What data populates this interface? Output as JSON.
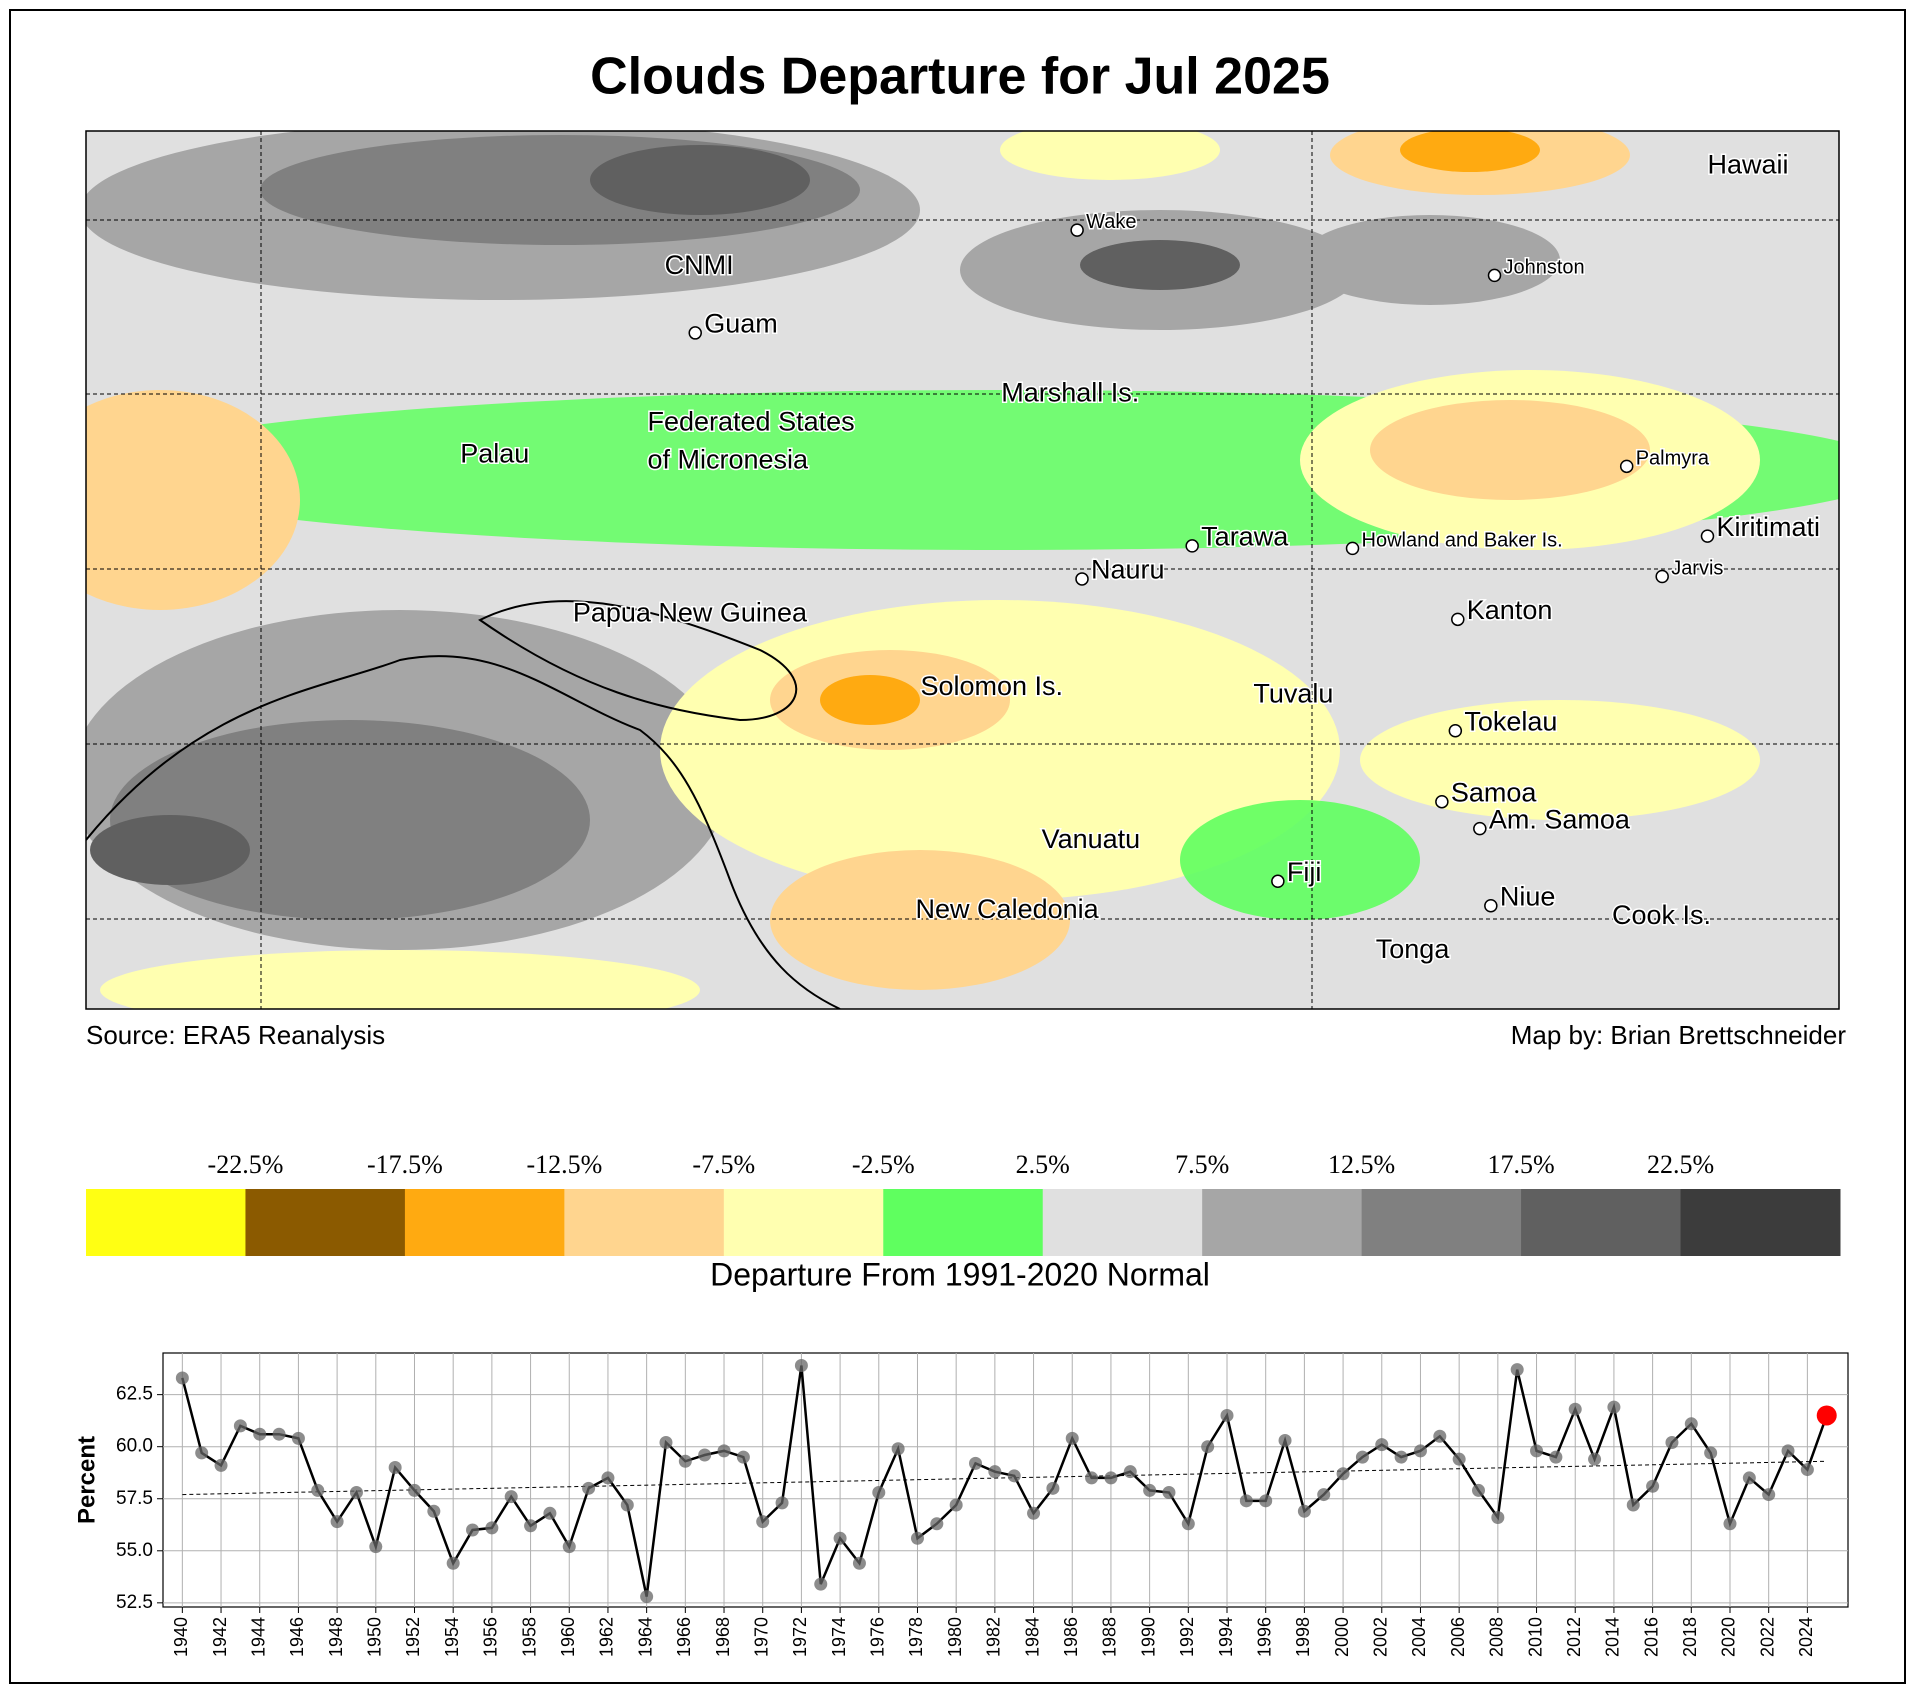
{
  "title": "Clouds Departure for Jul 2025",
  "map": {
    "source": "Source: ERA5 Reanalysis",
    "credit": "Map by: Brian Brettschneider",
    "places": [
      "Hawaii",
      "Wake",
      "CNMI",
      "Johnston",
      "Guam",
      "Marshall Is.",
      "Federated States",
      "of Micronesia",
      "Palau",
      "Palmyra",
      "Tarawa",
      "Howland and Baker Is.",
      "Kiritimati",
      "Nauru",
      "Jarvis",
      "Papua New Guinea",
      "Kanton",
      "Solomon Is.",
      "Tuvalu",
      "Tokelau",
      "Samoa",
      "Am. Samoa",
      "Vanuatu",
      "Fiji",
      "Niue",
      "New Caledonia",
      "Cook Is.",
      "Tonga"
    ]
  },
  "colorbar": {
    "title": "Departure From 1991-2020 Normal",
    "clim": [
      -27.5,
      27.5
    ],
    "colors": [
      "#ffff13",
      "#8b5a00",
      "#ffaa11",
      "#ffd58f",
      "#ffffb0",
      "#5fff5f",
      "#e0e0e0",
      "#a6a6a6",
      "#808080",
      "#606060",
      "#3c3c3c"
    ],
    "levels": [
      {
        "value": -22.5,
        "label": "-22.5%"
      },
      {
        "value": -17.5,
        "label": "-17.5%"
      },
      {
        "value": -12.5,
        "label": "-12.5%"
      },
      {
        "value": -7.5,
        "label": "-7.5%"
      },
      {
        "value": -2.5,
        "label": "-2.5%"
      },
      {
        "value": 2.5,
        "label": "2.5%"
      },
      {
        "value": 7.5,
        "label": "7.5%"
      },
      {
        "value": 12.5,
        "label": "12.5%"
      },
      {
        "value": 17.5,
        "label": "17.5%"
      },
      {
        "value": 22.5,
        "label": "22.5%"
      }
    ]
  },
  "chart_data": {
    "type": "line",
    "ylabel": "Percent",
    "color": "#000000",
    "marker_color": "#666666",
    "highlight_color": "#ff0000",
    "grid": true,
    "x": [
      1940,
      1941,
      1942,
      1943,
      1944,
      1945,
      1946,
      1947,
      1948,
      1949,
      1950,
      1951,
      1952,
      1953,
      1954,
      1955,
      1956,
      1957,
      1958,
      1959,
      1960,
      1961,
      1962,
      1963,
      1964,
      1965,
      1966,
      1967,
      1968,
      1969,
      1970,
      1971,
      1972,
      1973,
      1974,
      1975,
      1976,
      1977,
      1978,
      1979,
      1980,
      1981,
      1982,
      1983,
      1984,
      1985,
      1986,
      1987,
      1988,
      1989,
      1990,
      1991,
      1992,
      1993,
      1994,
      1995,
      1996,
      1997,
      1998,
      1999,
      2000,
      2001,
      2002,
      2003,
      2004,
      2005,
      2006,
      2007,
      2008,
      2009,
      2010,
      2011,
      2012,
      2013,
      2014,
      2015,
      2016,
      2017,
      2018,
      2019,
      2020,
      2021,
      2022,
      2023,
      2024,
      2025
    ],
    "values": [
      63.3,
      59.7,
      59.1,
      61.0,
      60.6,
      60.6,
      60.4,
      57.9,
      56.4,
      57.8,
      55.2,
      59.0,
      57.9,
      56.9,
      54.4,
      56.0,
      56.1,
      57.6,
      56.2,
      56.8,
      55.2,
      58.0,
      58.5,
      57.2,
      52.8,
      60.2,
      59.3,
      59.6,
      59.8,
      59.5,
      56.4,
      57.3,
      63.9,
      53.4,
      55.6,
      54.4,
      57.8,
      59.9,
      55.6,
      56.3,
      57.2,
      59.2,
      58.8,
      58.6,
      56.8,
      58.0,
      60.4,
      58.5,
      58.5,
      58.8,
      57.9,
      57.8,
      56.3,
      60.0,
      61.5,
      57.4,
      57.4,
      60.3,
      56.9,
      57.7,
      58.7,
      59.5,
      60.1,
      59.5,
      59.8,
      60.5,
      59.4,
      57.9,
      56.6,
      63.7,
      59.8,
      59.5,
      61.8,
      59.4,
      61.9,
      57.2,
      58.1,
      60.2,
      61.1,
      59.7,
      56.3,
      58.5,
      57.7,
      59.8,
      58.9,
      61.5
    ],
    "trend": {
      "x": [
        1940,
        2025
      ],
      "values": [
        57.7,
        59.3
      ]
    },
    "xlim": [
      1939.0,
      2026.1
    ],
    "ylim": [
      52.3,
      64.5
    ],
    "xticks": [
      1940,
      1942,
      1944,
      1946,
      1948,
      1950,
      1952,
      1954,
      1956,
      1958,
      1960,
      1962,
      1964,
      1966,
      1968,
      1970,
      1972,
      1974,
      1976,
      1978,
      1980,
      1982,
      1984,
      1986,
      1988,
      1990,
      1992,
      1994,
      1996,
      1998,
      2000,
      2002,
      2004,
      2006,
      2008,
      2010,
      2012,
      2014,
      2016,
      2018,
      2020,
      2022,
      2024
    ],
    "yticks": [
      52.5,
      {
        "value": 55,
        "label": "55.0"
      },
      57.5,
      {
        "value": 60,
        "label": "60.0"
      },
      62.5
    ]
  }
}
